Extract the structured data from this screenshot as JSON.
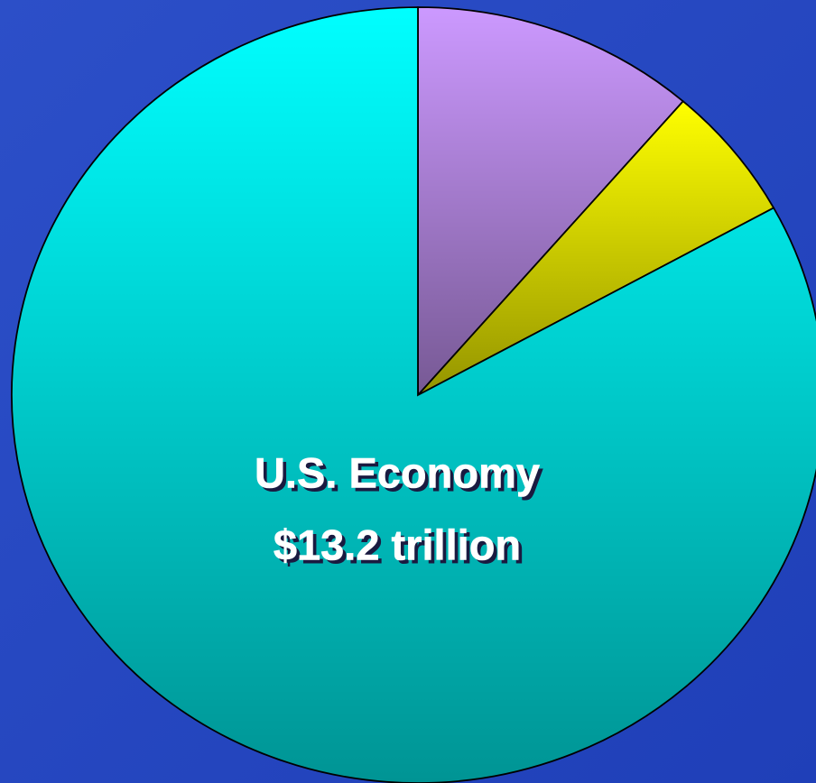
{
  "chart_data": {
    "type": "pie",
    "categories": [
      null,
      null,
      "U.S. Economy"
    ],
    "values": [
      1.8,
      0.9,
      13.2
    ],
    "value_labels": [
      null,
      null,
      "$13.2 trillion"
    ],
    "colors": [
      "#cc99ff",
      "#ffff00",
      "#00ffff"
    ]
  }
}
